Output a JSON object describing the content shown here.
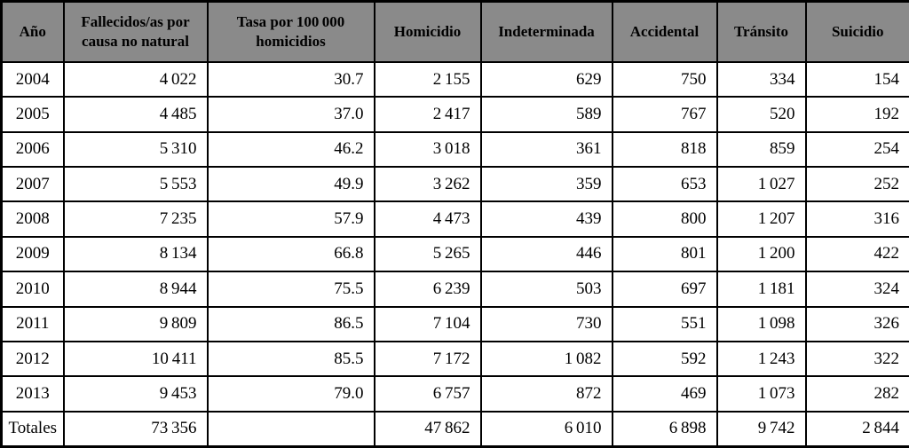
{
  "colors": {
    "header_bg": "#8a8a8a",
    "border": "#000000",
    "cell_bg": "#ffffff",
    "text": "#000000"
  },
  "table": {
    "headers": [
      "Año",
      "Fallecidos/as por causa no natural",
      "Tasa por 100 000 homicidios",
      "Homicidio",
      "Indeterminada",
      "Accidental",
      "Tránsito",
      "Suicidio"
    ],
    "rows": [
      [
        "2004",
        "4 022",
        "30.7",
        "2 155",
        "629",
        "750",
        "334",
        "154"
      ],
      [
        "2005",
        "4 485",
        "37.0",
        "2 417",
        "589",
        "767",
        "520",
        "192"
      ],
      [
        "2006",
        "5 310",
        "46.2",
        "3 018",
        "361",
        "818",
        "859",
        "254"
      ],
      [
        "2007",
        "5 553",
        "49.9",
        "3 262",
        "359",
        "653",
        "1 027",
        "252"
      ],
      [
        "2008",
        "7 235",
        "57.9",
        "4 473",
        "439",
        "800",
        "1 207",
        "316"
      ],
      [
        "2009",
        "8 134",
        "66.8",
        "5 265",
        "446",
        "801",
        "1 200",
        "422"
      ],
      [
        "2010",
        "8 944",
        "75.5",
        "6 239",
        "503",
        "697",
        "1 181",
        "324"
      ],
      [
        "2011",
        "9 809",
        "86.5",
        "7 104",
        "730",
        "551",
        "1 098",
        "326"
      ],
      [
        "2012",
        "10 411",
        "85.5",
        "7 172",
        "1 082",
        "592",
        "1 243",
        "322"
      ],
      [
        "2013",
        "9 453",
        "79.0",
        "6 757",
        "872",
        "469",
        "1 073",
        "282"
      ],
      [
        "Totales",
        "73 356",
        "",
        "47 862",
        "6 010",
        "6 898",
        "9 742",
        "2 844"
      ]
    ]
  },
  "chart_data": {
    "type": "table",
    "columns": [
      "Año",
      "Fallecidos/as por causa no natural",
      "Tasa por 100 000 homicidios",
      "Homicidio",
      "Indeterminada",
      "Accidental",
      "Tránsito",
      "Suicidio"
    ],
    "rows": [
      {
        "ano": "2004",
        "fallecidos": 4022,
        "tasa": 30.7,
        "homicidio": 2155,
        "indeterminada": 629,
        "accidental": 750,
        "transito": 334,
        "suicidio": 154
      },
      {
        "ano": "2005",
        "fallecidos": 4485,
        "tasa": 37.0,
        "homicidio": 2417,
        "indeterminada": 589,
        "accidental": 767,
        "transito": 520,
        "suicidio": 192
      },
      {
        "ano": "2006",
        "fallecidos": 5310,
        "tasa": 46.2,
        "homicidio": 3018,
        "indeterminada": 361,
        "accidental": 818,
        "transito": 859,
        "suicidio": 254
      },
      {
        "ano": "2007",
        "fallecidos": 5553,
        "tasa": 49.9,
        "homicidio": 3262,
        "indeterminada": 359,
        "accidental": 653,
        "transito": 1027,
        "suicidio": 252
      },
      {
        "ano": "2008",
        "fallecidos": 7235,
        "tasa": 57.9,
        "homicidio": 4473,
        "indeterminada": 439,
        "accidental": 800,
        "transito": 1207,
        "suicidio": 316
      },
      {
        "ano": "2009",
        "fallecidos": 8134,
        "tasa": 66.8,
        "homicidio": 5265,
        "indeterminada": 446,
        "accidental": 801,
        "transito": 1200,
        "suicidio": 422
      },
      {
        "ano": "2010",
        "fallecidos": 8944,
        "tasa": 75.5,
        "homicidio": 6239,
        "indeterminada": 503,
        "accidental": 697,
        "transito": 1181,
        "suicidio": 324
      },
      {
        "ano": "2011",
        "fallecidos": 9809,
        "tasa": 86.5,
        "homicidio": 7104,
        "indeterminada": 730,
        "accidental": 551,
        "transito": 1098,
        "suicidio": 326
      },
      {
        "ano": "2012",
        "fallecidos": 10411,
        "tasa": 85.5,
        "homicidio": 7172,
        "indeterminada": 1082,
        "accidental": 592,
        "transito": 1243,
        "suicidio": 322
      },
      {
        "ano": "2013",
        "fallecidos": 9453,
        "tasa": 79.0,
        "homicidio": 6757,
        "indeterminada": 872,
        "accidental": 469,
        "transito": 1073,
        "suicidio": 282
      }
    ],
    "totals": {
      "ano": "Totales",
      "fallecidos": 73356,
      "tasa": null,
      "homicidio": 47862,
      "indeterminada": 6010,
      "accidental": 6898,
      "transito": 9742,
      "suicidio": 2844
    }
  }
}
